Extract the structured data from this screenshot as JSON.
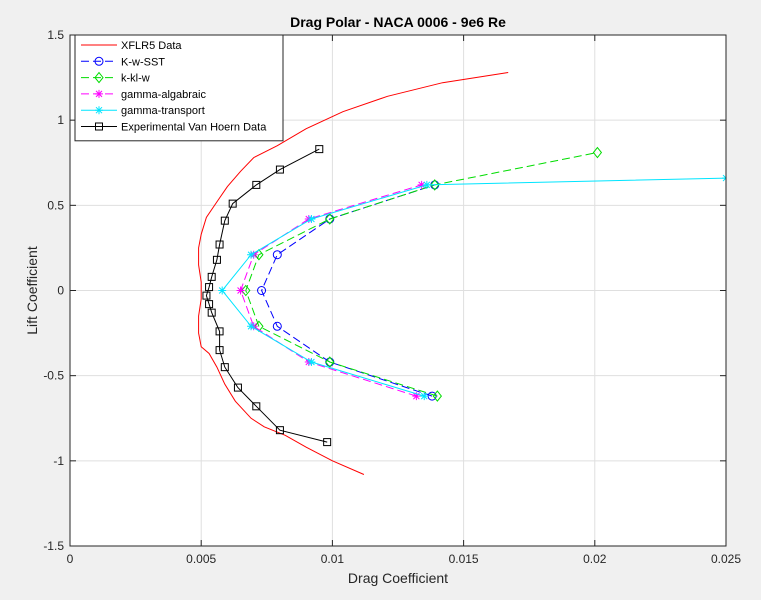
{
  "chart_data": {
    "type": "line",
    "title": "Drag Polar - NACA 0006 - 9e6 Re",
    "xlabel": "Drag Coefficient",
    "ylabel": "Lift Coefficient",
    "xlim": [
      0,
      0.025
    ],
    "ylim": [
      -1.5,
      1.5
    ],
    "xticks": [
      0,
      0.005,
      0.01,
      0.015,
      0.02,
      0.025
    ],
    "xtick_labels": [
      "0",
      "0.005",
      "0.01",
      "0.015",
      "0.02",
      "0.025"
    ],
    "yticks": [
      -1.5,
      -1,
      -0.5,
      0,
      0.5,
      1,
      1.5
    ],
    "ytick_labels": [
      "-1.5",
      "-1",
      "-0.5",
      "0",
      "0.5",
      "1",
      "1.5"
    ],
    "grid": true,
    "legend_position": "top-left",
    "series": [
      {
        "name": "XFLR5 Data",
        "color": "#ff0000",
        "dash": "solid",
        "marker": "none",
        "points": [
          [
            0.0112,
            -1.08
          ],
          [
            0.01,
            -1.0
          ],
          [
            0.009,
            -0.92
          ],
          [
            0.0082,
            -0.85
          ],
          [
            0.0074,
            -0.8
          ],
          [
            0.0069,
            -0.75
          ],
          [
            0.0063,
            -0.65
          ],
          [
            0.0059,
            -0.55
          ],
          [
            0.0056,
            -0.45
          ],
          [
            0.0053,
            -0.37
          ],
          [
            0.005,
            -0.33
          ],
          [
            0.0049,
            -0.25
          ],
          [
            0.0049,
            -0.15
          ],
          [
            0.005,
            -0.05
          ],
          [
            0.005,
            0.0
          ],
          [
            0.005,
            0.05
          ],
          [
            0.0049,
            0.15
          ],
          [
            0.0049,
            0.25
          ],
          [
            0.005,
            0.33
          ],
          [
            0.0052,
            0.43
          ],
          [
            0.0056,
            0.52
          ],
          [
            0.006,
            0.61
          ],
          [
            0.0065,
            0.7
          ],
          [
            0.007,
            0.78
          ],
          [
            0.0079,
            0.85
          ],
          [
            0.009,
            0.95
          ],
          [
            0.0104,
            1.05
          ],
          [
            0.0121,
            1.14
          ],
          [
            0.0142,
            1.22
          ],
          [
            0.0167,
            1.28
          ]
        ]
      },
      {
        "name": "K-w-SST",
        "color": "#0000ff",
        "dash": "8,4",
        "marker": "circle",
        "points": [
          [
            0.0138,
            -0.62
          ],
          [
            0.0099,
            -0.42
          ],
          [
            0.0079,
            -0.21
          ],
          [
            0.0073,
            0.0
          ],
          [
            0.0079,
            0.21
          ],
          [
            0.0099,
            0.42
          ],
          [
            0.0139,
            0.62
          ]
        ]
      },
      {
        "name": "k-kl-w",
        "color": "#00dd00",
        "dash": "8,4",
        "marker": "diamond",
        "points": [
          [
            0.014,
            -0.62
          ],
          [
            0.0099,
            -0.42
          ],
          [
            0.0072,
            -0.21
          ],
          [
            0.0067,
            0.0
          ],
          [
            0.0072,
            0.21
          ],
          [
            0.0099,
            0.42
          ],
          [
            0.0139,
            0.62
          ],
          [
            0.0201,
            0.81
          ]
        ]
      },
      {
        "name": "gamma-algabraic",
        "color": "#ff00ff",
        "dash": "8,4",
        "marker": "star",
        "points": [
          [
            0.0132,
            -0.62
          ],
          [
            0.0091,
            -0.42
          ],
          [
            0.007,
            -0.21
          ],
          [
            0.0065,
            0.0
          ],
          [
            0.007,
            0.21
          ],
          [
            0.0091,
            0.42
          ],
          [
            0.0134,
            0.62
          ]
        ]
      },
      {
        "name": "gamma-transport",
        "color": "#00e5ff",
        "dash": "solid",
        "marker": "star",
        "points": [
          [
            0.0135,
            -0.62
          ],
          [
            0.0092,
            -0.42
          ],
          [
            0.0069,
            -0.21
          ],
          [
            0.0058,
            0.0
          ],
          [
            0.0069,
            0.21
          ],
          [
            0.0092,
            0.42
          ],
          [
            0.0136,
            0.62
          ],
          [
            0.025,
            0.66
          ]
        ]
      },
      {
        "name": "Experimental Van Hoern Data",
        "color": "#000000",
        "dash": "solid",
        "marker": "square",
        "points": [
          [
            0.0098,
            -0.89
          ],
          [
            0.008,
            -0.82
          ],
          [
            0.0071,
            -0.68
          ],
          [
            0.0064,
            -0.57
          ],
          [
            0.0059,
            -0.45
          ],
          [
            0.0057,
            -0.35
          ],
          [
            0.0057,
            -0.24
          ],
          [
            0.0054,
            -0.13
          ],
          [
            0.0053,
            -0.08
          ],
          [
            0.0052,
            -0.03
          ],
          [
            0.0053,
            0.02
          ],
          [
            0.0054,
            0.08
          ],
          [
            0.0056,
            0.18
          ],
          [
            0.0057,
            0.27
          ],
          [
            0.0059,
            0.41
          ],
          [
            0.0062,
            0.51
          ],
          [
            0.0071,
            0.62
          ],
          [
            0.008,
            0.71
          ],
          [
            0.0095,
            0.83
          ]
        ]
      }
    ]
  }
}
